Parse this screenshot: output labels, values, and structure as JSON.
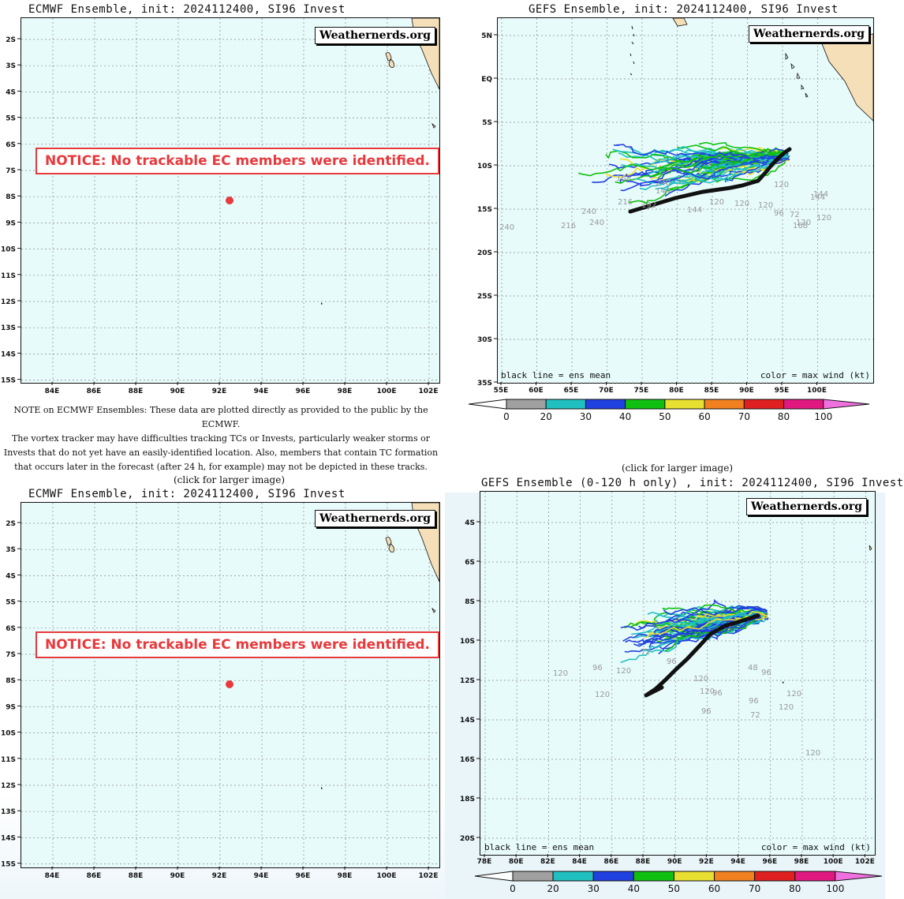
{
  "watermark": "Weathernerds.org",
  "click_note": "(click for larger image)",
  "notice": "NOTICE: No trackable EC members were identified.",
  "ecmwf_note": [
    "NOTE on ECMWF Ensembles: These data are plotted directly as provided to the public by the ECMWF.",
    "The vortex tracker may have difficulties tracking TCs or Invests, particularly weaker storms or",
    "Invests that do not yet have an easily-identified location. Also, members that contain TC formation",
    "that occurs later in the forecast (after 24 h, for example) may not be depicted in these tracks."
  ],
  "panels": {
    "ecmwf_top": {
      "title": "ECMWF Ensemble, init: 2024112400, SI96 Invest",
      "x_ticks": [
        "84E",
        "86E",
        "88E",
        "90E",
        "92E",
        "94E",
        "96E",
        "98E",
        "100E",
        "102E"
      ],
      "y_ticks": [
        "2S",
        "3S",
        "4S",
        "5S",
        "6S",
        "7S",
        "8S",
        "9S",
        "10S",
        "11S",
        "12S",
        "13S",
        "14S",
        "15S"
      ]
    },
    "gefs_top": {
      "title": "GEFS Ensemble, init: 2024112400, SI96 Invest",
      "x_ticks": [
        "55E",
        "60E",
        "65E",
        "70E",
        "75E",
        "80E",
        "85E",
        "90E",
        "95E",
        "100E"
      ],
      "y_ticks": [
        "5N",
        "EQ",
        "5S",
        "10S",
        "15S",
        "20S",
        "25S",
        "30S",
        "35S"
      ],
      "legend_left": "black line = ens mean",
      "legend_right": "color = max wind (kt)",
      "track_labels": [
        "240",
        "240",
        "216",
        "240",
        "216",
        "144",
        "120",
        "120",
        "144",
        "120",
        "96",
        "72",
        "168",
        "192",
        "168",
        "120",
        "144",
        "120",
        "240",
        "120",
        "144"
      ]
    },
    "ecmwf_bottom": {
      "title": "ECMWF Ensemble, init: 2024112400, SI96 Invest",
      "x_ticks": [
        "84E",
        "86E",
        "88E",
        "90E",
        "92E",
        "94E",
        "96E",
        "98E",
        "100E",
        "102E"
      ],
      "y_ticks": [
        "2S",
        "3S",
        "4S",
        "5S",
        "6S",
        "7S",
        "8S",
        "9S",
        "10S",
        "11S",
        "12S",
        "13S",
        "14S",
        "15S"
      ]
    },
    "gefs_bottom": {
      "title": "GEFS Ensemble (0-120 h only) , init: 2024112400, SI96 Invest",
      "x_ticks": [
        "78E",
        "80E",
        "82E",
        "84E",
        "86E",
        "88E",
        "90E",
        "92E",
        "94E",
        "96E",
        "98E",
        "100E",
        "102E"
      ],
      "y_ticks": [
        "4S",
        "6S",
        "8S",
        "10S",
        "12S",
        "14S",
        "16S",
        "18S",
        "20S"
      ],
      "legend_left": "black line = ens mean",
      "legend_right": "color = max wind (kt)",
      "track_labels": [
        "120",
        "96",
        "120",
        "120",
        "72",
        "96",
        "120",
        "120",
        "96",
        "96",
        "96",
        "120",
        "72",
        "48",
        "96",
        "120",
        "120"
      ]
    }
  },
  "colorbar": {
    "labels": [
      "0",
      "20",
      "30",
      "40",
      "50",
      "60",
      "70",
      "80",
      "100"
    ],
    "colors": [
      "#a0a0a0",
      "#20c0c0",
      "#2040e0",
      "#10c010",
      "#e8e030",
      "#f08020",
      "#e02020",
      "#e01880",
      "#f070e0"
    ]
  },
  "colors": {
    "ocean": "#e8fbfb",
    "land": "#f5dfb8",
    "notice": "#e8393c"
  }
}
